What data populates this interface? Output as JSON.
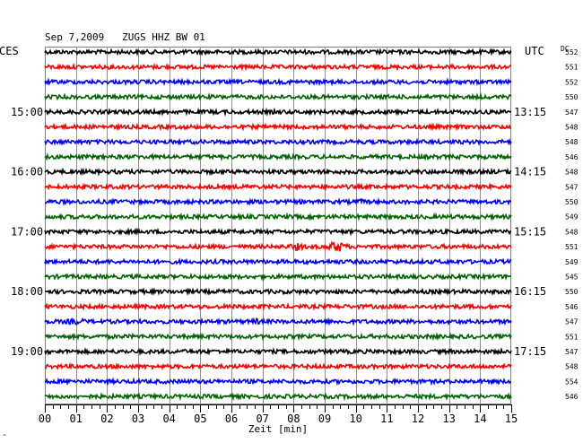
{
  "header": {
    "title": "Sep 7,2009   ZUGS HHZ BW 01",
    "left_tz": "CES",
    "right_tz": "UTC",
    "dc_label": "DC"
  },
  "chart_data": {
    "type": "helicorder",
    "station": "ZUGS",
    "channel": "HHZ",
    "network": "BW",
    "location": "01",
    "date": "Sep 7,2009",
    "trace_minutes_per_line": 15,
    "xlabel": "Zeit [min]",
    "xlim": [
      0,
      15
    ],
    "x_tick_labels": [
      "00",
      "01",
      "02",
      "03",
      "04",
      "05",
      "06",
      "07",
      "08",
      "09",
      "10",
      "11",
      "12",
      "13",
      "14",
      "15"
    ],
    "grid": true,
    "line_colors": [
      "#000000",
      "#ff0000",
      "#0000ff",
      "#006400"
    ],
    "left_hour_labels": [
      {
        "line": 4,
        "text": "15:00"
      },
      {
        "line": 8,
        "text": "16:00"
      },
      {
        "line": 12,
        "text": "17:00"
      },
      {
        "line": 16,
        "text": "18:00"
      },
      {
        "line": 20,
        "text": "19:00"
      }
    ],
    "right_hour_labels": [
      {
        "line": 4,
        "text": "13:15"
      },
      {
        "line": 8,
        "text": "14:15"
      },
      {
        "line": 12,
        "text": "15:15"
      },
      {
        "line": 16,
        "text": "16:15"
      },
      {
        "line": 20,
        "text": "17:15"
      }
    ],
    "dc_values": [
      552,
      551,
      552,
      550,
      547,
      548,
      548,
      546,
      548,
      547,
      550,
      549,
      548,
      551,
      549,
      545,
      550,
      546,
      547,
      551,
      547,
      548,
      554,
      546
    ],
    "events": [
      {
        "line": 13,
        "start_min": 7.8,
        "end_min": 8.4,
        "amplitude": 2.0
      },
      {
        "line": 13,
        "start_min": 9.0,
        "end_min": 9.8,
        "amplitude": 3.0
      },
      {
        "line": 18,
        "start_min": 0.6,
        "end_min": 1.4,
        "amplitude": 1.6
      },
      {
        "line": 18,
        "start_min": 6.6,
        "end_min": 7.0,
        "amplitude": 1.6
      },
      {
        "line": 10,
        "start_min": 10.0,
        "end_min": 10.3,
        "amplitude": 1.4
      }
    ]
  }
}
